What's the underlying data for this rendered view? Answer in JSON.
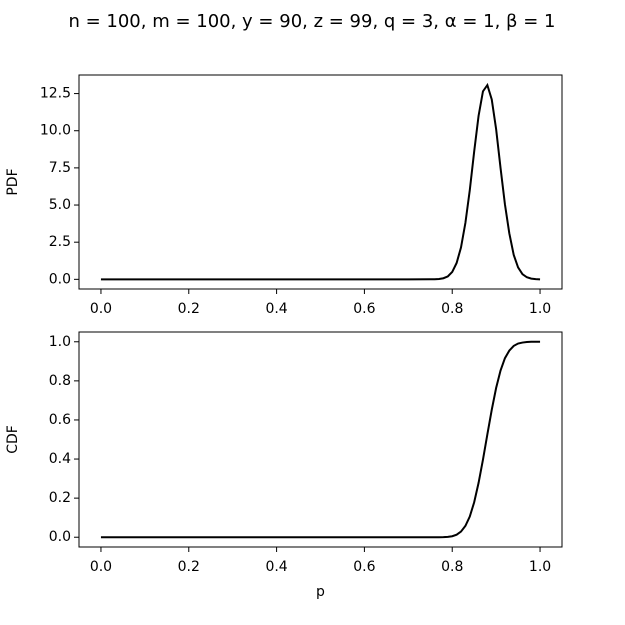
{
  "title": "n = 100, m = 100, y = 90, z = 99, q = 3, α = 1, β = 1",
  "chart_data": [
    {
      "type": "line",
      "ylabel": "PDF",
      "color": "#000000",
      "x": [
        0,
        0.05,
        0.1,
        0.15,
        0.2,
        0.25,
        0.3,
        0.35,
        0.4,
        0.45,
        0.5,
        0.55,
        0.6,
        0.65,
        0.7,
        0.75,
        0.76,
        0.77,
        0.78,
        0.79,
        0.8,
        0.81,
        0.82,
        0.83,
        0.84,
        0.85,
        0.86,
        0.87,
        0.88,
        0.89,
        0.9,
        0.91,
        0.92,
        0.93,
        0.94,
        0.95,
        0.96,
        0.97,
        0.98,
        0.99,
        1.0
      ],
      "values": [
        0,
        0,
        0,
        0,
        0,
        0,
        0,
        0,
        0,
        0,
        0,
        0,
        0,
        0,
        0,
        0.002,
        0.007,
        0.025,
        0.075,
        0.2,
        0.5,
        1.1,
        2.15,
        3.8,
        6.0,
        8.6,
        11.0,
        12.65,
        13.07,
        12.1,
        10.1,
        7.5,
        5.05,
        3.1,
        1.65,
        0.8,
        0.35,
        0.14,
        0.05,
        0.015,
        0
      ],
      "xlim": [
        -0.05,
        1.05
      ],
      "ylim": [
        -0.65,
        13.75
      ],
      "xticks": [
        {
          "value": 0,
          "label": "0.0"
        },
        {
          "value": 0.2,
          "label": "0.2"
        },
        {
          "value": 0.4,
          "label": "0.4"
        },
        {
          "value": 0.6,
          "label": "0.6"
        },
        {
          "value": 0.8,
          "label": "0.8"
        },
        {
          "value": 1.0,
          "label": "1.0"
        }
      ],
      "yticks": [
        {
          "value": 0,
          "label": "0.0"
        },
        {
          "value": 2.5,
          "label": "2.5"
        },
        {
          "value": 5,
          "label": "5.0"
        },
        {
          "value": 7.5,
          "label": "7.5"
        },
        {
          "value": 10,
          "label": "10.0"
        },
        {
          "value": 12.5,
          "label": "12.5"
        }
      ]
    },
    {
      "type": "line",
      "ylabel": "CDF",
      "xlabel": "p",
      "color": "#000000",
      "x": [
        0,
        0.05,
        0.1,
        0.15,
        0.2,
        0.25,
        0.3,
        0.35,
        0.4,
        0.45,
        0.5,
        0.55,
        0.6,
        0.65,
        0.7,
        0.75,
        0.76,
        0.77,
        0.78,
        0.79,
        0.8,
        0.81,
        0.82,
        0.83,
        0.84,
        0.85,
        0.86,
        0.87,
        0.88,
        0.89,
        0.9,
        0.91,
        0.92,
        0.93,
        0.94,
        0.95,
        0.96,
        0.97,
        0.98,
        0.99,
        1.0
      ],
      "values": [
        0,
        0,
        0,
        0,
        0,
        0,
        0,
        0,
        0,
        0,
        0,
        0,
        0,
        0,
        0,
        0,
        0,
        0.0001,
        0.0007,
        0.002,
        0.005,
        0.013,
        0.029,
        0.058,
        0.106,
        0.179,
        0.278,
        0.397,
        0.526,
        0.652,
        0.764,
        0.853,
        0.916,
        0.955,
        0.979,
        0.991,
        0.996,
        0.999,
        1,
        1,
        1
      ],
      "xlim": [
        -0.05,
        1.05
      ],
      "ylim": [
        -0.05,
        1.05
      ],
      "xticks": [
        {
          "value": 0,
          "label": "0.0"
        },
        {
          "value": 0.2,
          "label": "0.2"
        },
        {
          "value": 0.4,
          "label": "0.4"
        },
        {
          "value": 0.6,
          "label": "0.6"
        },
        {
          "value": 0.8,
          "label": "0.8"
        },
        {
          "value": 1.0,
          "label": "1.0"
        }
      ],
      "yticks": [
        {
          "value": 0,
          "label": "0.0"
        },
        {
          "value": 0.2,
          "label": "0.2"
        },
        {
          "value": 0.4,
          "label": "0.4"
        },
        {
          "value": 0.6,
          "label": "0.6"
        },
        {
          "value": 0.8,
          "label": "0.8"
        },
        {
          "value": 1.0,
          "label": "1.0"
        }
      ]
    }
  ]
}
